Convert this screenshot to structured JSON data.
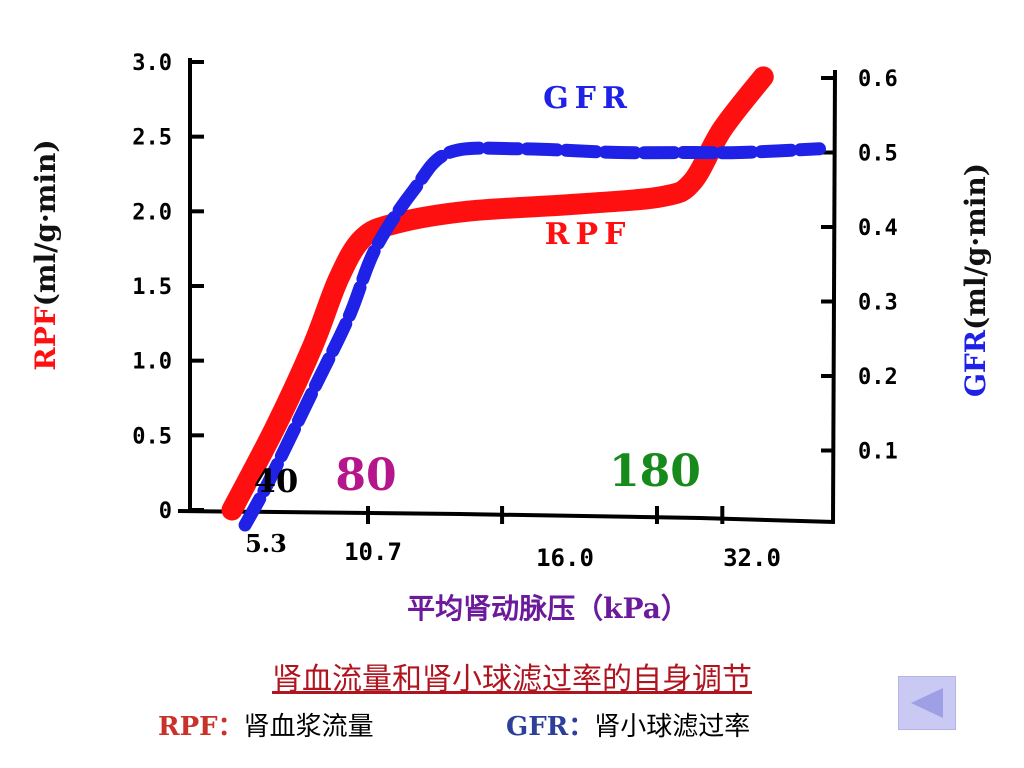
{
  "colors": {
    "rpf": "#ff1010",
    "gfr": "#1f22e6",
    "axis": "#000000",
    "caption": "#b0151f",
    "marker_80": "#b5168c",
    "marker_180": "#168a1a",
    "legend_rpf_key": "#c8322a",
    "legend_gfr_key": "#2c3f9b",
    "button_bg": "#c9c9f3",
    "button_arrow": "#9f9fe6"
  },
  "chart_data": {
    "type": "line",
    "title": "",
    "xlabel": "平均肾动脉压（kPa）",
    "ylabel_left": "RPF(ml/g·min)",
    "ylabel_right": "GFR(ml/g·min)",
    "y_left_ticks": [
      "0",
      "0.5",
      "1.0",
      "1.5",
      "2.0",
      "2.5",
      "3.0"
    ],
    "y_right_ticks": [
      "0.1",
      "0.2",
      "0.3",
      "0.4",
      "0.5",
      "0.6"
    ],
    "ylim_left": [
      0,
      3.0
    ],
    "ylim_right": [
      0,
      0.6
    ],
    "x_tick_labels": [
      "5.3",
      "10.7",
      "16.0",
      "32.0"
    ],
    "marker_labels": [
      {
        "text": "40",
        "x": 5.3,
        "color": "#000000"
      },
      {
        "text": "80",
        "x": 10.7,
        "color": "#b5168c"
      },
      {
        "text": "180",
        "x": 24.0,
        "color": "#168a1a"
      }
    ],
    "x_axis_note": "x positions approximate (kPa); axis is not strictly linear",
    "series": [
      {
        "name": "RPF",
        "axis": "left",
        "color": "#ff1010",
        "points": [
          [
            3.0,
            0.0
          ],
          [
            5.3,
            0.55
          ],
          [
            7.5,
            1.1
          ],
          [
            9.0,
            1.55
          ],
          [
            10.4,
            1.82
          ],
          [
            11.5,
            1.92
          ],
          [
            13.5,
            2.0
          ],
          [
            18.0,
            2.05
          ],
          [
            24.5,
            2.1
          ],
          [
            27.0,
            2.2
          ],
          [
            29.5,
            2.55
          ],
          [
            32.5,
            2.9
          ]
        ]
      },
      {
        "name": "GFR",
        "axis": "right",
        "color": "#1f22e6",
        "points": [
          [
            3.7,
            0.0
          ],
          [
            5.0,
            0.06
          ],
          [
            7.5,
            0.18
          ],
          [
            9.6,
            0.28
          ],
          [
            10.9,
            0.37
          ],
          [
            12.0,
            0.45
          ],
          [
            13.0,
            0.5
          ],
          [
            15.0,
            0.505
          ],
          [
            21.0,
            0.5
          ],
          [
            27.0,
            0.5
          ],
          [
            31.0,
            0.5
          ],
          [
            35.0,
            0.505
          ]
        ]
      }
    ],
    "series_labels": [
      {
        "text": "GFR",
        "color": "#1f22e6"
      },
      {
        "text": "RPF",
        "color": "#ff1010"
      }
    ]
  },
  "caption": "肾血流量和肾小球滤过率的自身调节",
  "legend": {
    "rpf_key": "RPF：",
    "rpf_desc": "肾血浆流量",
    "gfr_key": "GFR：",
    "gfr_desc": "肾小球滤过率"
  },
  "nav": {
    "back_icon": "left-triangle-icon"
  }
}
